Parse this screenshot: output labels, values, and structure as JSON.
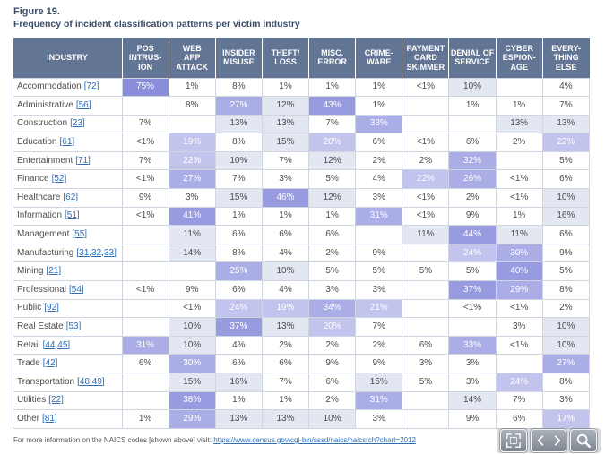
{
  "figure": {
    "label": "Figure 19.",
    "title": "Frequency of incident classification patterns per victim industry"
  },
  "table": {
    "industry_header": "INDUSTRY",
    "columns": [
      [
        "POS",
        "INTRUS-",
        "ION"
      ],
      [
        "WEB",
        "APP",
        "ATTACK"
      ],
      [
        "INSIDER",
        "MISUSE"
      ],
      [
        "THEFT/",
        "LOSS"
      ],
      [
        "MISC.",
        "ERROR"
      ],
      [
        "CRIME-",
        "WARE"
      ],
      [
        "PAYMENT",
        "CARD",
        "SKIMMER"
      ],
      [
        "DENIAL OF",
        "SERVICE"
      ],
      [
        "CYBER",
        "ESPION-",
        "AGE"
      ],
      [
        "EVERY-",
        "THING",
        "ELSE"
      ]
    ],
    "rows": [
      {
        "industry": "Accommodation",
        "code": "[72]",
        "values": [
          "75%",
          "1%",
          "8%",
          "1%",
          "1%",
          "1%",
          "<1%",
          "10%",
          "",
          "4%"
        ]
      },
      {
        "industry": "Administrative",
        "code": "[56]",
        "values": [
          "",
          "8%",
          "27%",
          "12%",
          "43%",
          "1%",
          "",
          "1%",
          "1%",
          "7%"
        ]
      },
      {
        "industry": "Construction",
        "code": "[23]",
        "values": [
          "7%",
          "",
          "13%",
          "13%",
          "7%",
          "33%",
          "",
          "",
          "13%",
          "13%"
        ]
      },
      {
        "industry": "Education",
        "code": "[61]",
        "values": [
          "<1%",
          "19%",
          "8%",
          "15%",
          "20%",
          "6%",
          "<1%",
          "6%",
          "2%",
          "22%"
        ]
      },
      {
        "industry": "Entertainment",
        "code": "[71]",
        "values": [
          "7%",
          "22%",
          "10%",
          "7%",
          "12%",
          "2%",
          "2%",
          "32%",
          "",
          "5%"
        ]
      },
      {
        "industry": "Finance",
        "code": "[52]",
        "values": [
          "<1%",
          "27%",
          "7%",
          "3%",
          "5%",
          "4%",
          "22%",
          "26%",
          "<1%",
          "6%"
        ]
      },
      {
        "industry": "Healthcare",
        "code": "[62]",
        "values": [
          "9%",
          "3%",
          "15%",
          "46%",
          "12%",
          "3%",
          "<1%",
          "2%",
          "<1%",
          "10%"
        ]
      },
      {
        "industry": "Information",
        "code": "[51]",
        "values": [
          "<1%",
          "41%",
          "1%",
          "1%",
          "1%",
          "31%",
          "<1%",
          "9%",
          "1%",
          "16%"
        ]
      },
      {
        "industry": "Management",
        "code": "[55]",
        "values": [
          "",
          "11%",
          "6%",
          "6%",
          "6%",
          "",
          "11%",
          "44%",
          "11%",
          "6%"
        ]
      },
      {
        "industry": "Manufacturing",
        "code": "[31,32,33]",
        "values": [
          "",
          "14%",
          "8%",
          "4%",
          "2%",
          "9%",
          "",
          "24%",
          "30%",
          "9%"
        ]
      },
      {
        "industry": "Mining",
        "code": "[21]",
        "values": [
          "",
          "",
          "25%",
          "10%",
          "5%",
          "5%",
          "5%",
          "5%",
          "40%",
          "5%"
        ]
      },
      {
        "industry": "Professional",
        "code": "[54]",
        "values": [
          "<1%",
          "9%",
          "6%",
          "4%",
          "3%",
          "3%",
          "",
          "37%",
          "29%",
          "8%"
        ]
      },
      {
        "industry": "Public",
        "code": "[92]",
        "values": [
          "",
          "<1%",
          "24%",
          "19%",
          "34%",
          "21%",
          "",
          "<1%",
          "<1%",
          "2%"
        ]
      },
      {
        "industry": "Real Estate",
        "code": "[53]",
        "values": [
          "",
          "10%",
          "37%",
          "13%",
          "20%",
          "7%",
          "",
          "",
          "3%",
          "10%"
        ]
      },
      {
        "industry": "Retail",
        "code": "[44,45]",
        "values": [
          "31%",
          "10%",
          "4%",
          "2%",
          "2%",
          "2%",
          "6%",
          "33%",
          "<1%",
          "10%"
        ]
      },
      {
        "industry": "Trade",
        "code": "[42]",
        "values": [
          "6%",
          "30%",
          "6%",
          "6%",
          "9%",
          "9%",
          "3%",
          "3%",
          "",
          "27%"
        ]
      },
      {
        "industry": "Transportation",
        "code": "[48,49]",
        "values": [
          "",
          "15%",
          "16%",
          "7%",
          "6%",
          "15%",
          "5%",
          "3%",
          "24%",
          "8%"
        ]
      },
      {
        "industry": "Utilities",
        "code": "[22]",
        "values": [
          "",
          "38%",
          "1%",
          "1%",
          "2%",
          "31%",
          "",
          "14%",
          "7%",
          "3%"
        ]
      },
      {
        "industry": "Other",
        "code": "[81]",
        "values": [
          "1%",
          "29%",
          "13%",
          "13%",
          "10%",
          "3%",
          "",
          "9%",
          "6%",
          "17%"
        ]
      }
    ]
  },
  "footnote": {
    "text": "For more information on the NAICS codes [shown above] visit:",
    "link": "https://www.census.gov/cgi-bin/sssd/naics/naicsrch?chart=2012"
  },
  "toolbar": {
    "icons": [
      "fit-screen-icon",
      "chevron-left-icon",
      "chevron-right-icon",
      "magnifier-icon"
    ]
  },
  "colors": {
    "title": "#3b4d66",
    "header_bg": "#627594",
    "header_text": "#ffffff",
    "grid": "#cfd6e2",
    "text": "#4d4d4d",
    "link": "#2e6db4",
    "heat": [
      "#e2e7f1",
      "#c2c4ee",
      "#abaee6",
      "#989bdf",
      "#8a8dd8"
    ]
  }
}
